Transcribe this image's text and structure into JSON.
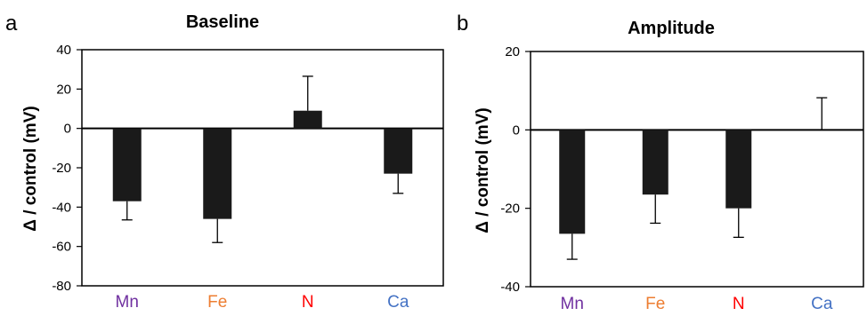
{
  "chart_data": [
    {
      "type": "bar",
      "panel_letter": "a",
      "title": "Baseline",
      "xlabel": "",
      "ylabel": "Δ / control (mV)",
      "ylim": [
        -80,
        40
      ],
      "yticks": [
        40,
        20,
        0,
        -20,
        -40,
        -60,
        -80
      ],
      "categories": [
        "Mn",
        "Fe",
        "N",
        "Ca"
      ],
      "category_colors": [
        "#7030a0",
        "#ed7d31",
        "#ff0000",
        "#4472c4"
      ],
      "values": [
        -37,
        -46,
        9,
        -23
      ],
      "errors": [
        9.5,
        12,
        17.5,
        10
      ],
      "bar_color": "#1a1a1a",
      "grid": false
    },
    {
      "type": "bar",
      "panel_letter": "b",
      "title": "Amplitude",
      "xlabel": "",
      "ylabel": "Δ / control (mV)",
      "ylim": [
        -40,
        20
      ],
      "yticks": [
        20,
        0,
        -20,
        -40
      ],
      "categories": [
        "Mn",
        "Fe",
        "N",
        "Ca"
      ],
      "category_colors": [
        "#7030a0",
        "#ed7d31",
        "#ff0000",
        "#4472c4"
      ],
      "values": [
        -26.5,
        -16.5,
        -20,
        0
      ],
      "errors": [
        6.5,
        7.3,
        7.4,
        8.2
      ],
      "bar_color": "#1a1a1a",
      "grid": false
    }
  ]
}
